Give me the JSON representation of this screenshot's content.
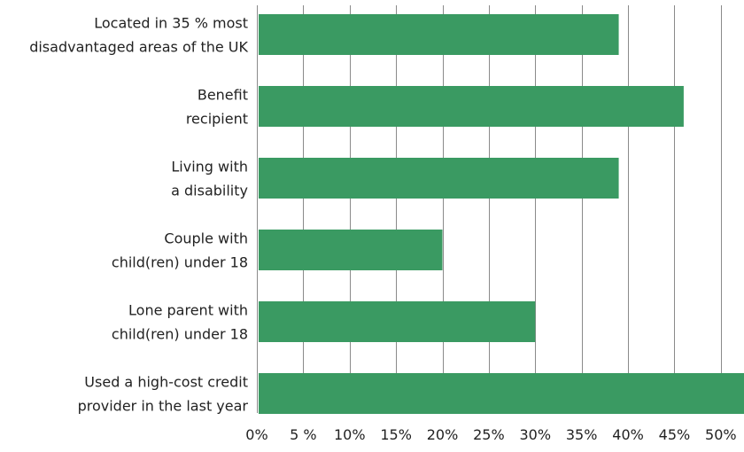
{
  "chart_data": {
    "type": "bar",
    "orientation": "horizontal",
    "categories": [
      [
        "Located in 35 %  most",
        "disadvantaged areas of the UK"
      ],
      [
        "Benefit",
        "recipient"
      ],
      [
        "Living with",
        "a disability"
      ],
      [
        "Couple with",
        "child(ren) under 18"
      ],
      [
        "Lone parent with",
        "child(ren) under 18"
      ],
      [
        "Used a high-cost credit",
        "provider in the last year"
      ]
    ],
    "values": [
      39,
      46,
      39,
      20,
      30,
      53
    ],
    "xlim": [
      0,
      52.5
    ],
    "xticks": [
      0,
      5,
      10,
      15,
      20,
      25,
      30,
      35,
      40,
      45,
      50
    ],
    "tick_labels": [
      "0%",
      "5 %",
      "10%",
      "15%",
      "20%",
      "25%",
      "30%",
      "35%",
      "40%",
      "45%",
      "50%"
    ],
    "title": "",
    "xlabel": "",
    "ylabel": "",
    "grid": "vertical",
    "legend": "none",
    "colors": {
      "bar": "#3a9a62",
      "grid": "#8a8a8a",
      "text": "#222222"
    }
  }
}
